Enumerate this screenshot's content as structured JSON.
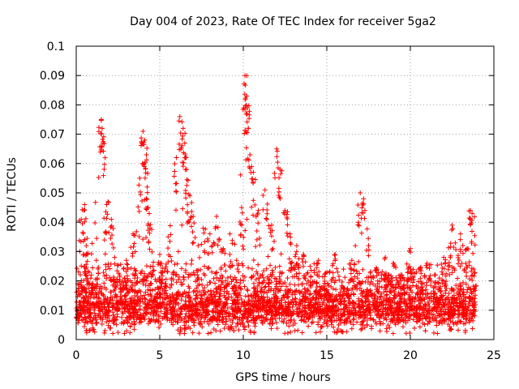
{
  "chart_data": {
    "type": "scatter",
    "title": "Day 004 of 2023, Rate Of TEC Index for receiver 5ga2",
    "xlabel": "GPS time / hours",
    "ylabel": "ROTI / TECUs",
    "xlim": [
      0,
      25
    ],
    "ylim": [
      0,
      0.1
    ],
    "x_ticks": [
      0,
      5,
      10,
      15,
      20,
      25
    ],
    "x_tick_labels": [
      "0",
      "5",
      "10",
      "15",
      "20",
      "25"
    ],
    "y_ticks": [
      0,
      0.01,
      0.02,
      0.03,
      0.04,
      0.05,
      0.06,
      0.07,
      0.08,
      0.09,
      0.1
    ],
    "y_tick_labels": [
      "0",
      "0.01",
      "0.02",
      "0.03",
      "0.04",
      "0.05",
      "0.06",
      "0.07",
      "0.08",
      "0.09",
      "0.1"
    ],
    "grid": true,
    "marker": "+",
    "series_color": "#ff0000",
    "series": [
      {
        "name": "ROTI",
        "x": [
          0.1,
          0.3,
          0.5,
          0.6,
          0.9,
          1.2,
          1.5,
          1.55,
          1.6,
          1.9,
          2.1,
          2.3,
          2.6,
          3.0,
          3.4,
          3.8,
          4.0,
          4.1,
          4.2,
          4.25,
          4.3,
          4.4,
          4.6,
          5.0,
          5.5,
          6.0,
          6.2,
          6.4,
          6.5,
          6.6,
          6.8,
          7.0,
          7.3,
          7.6,
          8.0,
          8.4,
          8.8,
          9.2,
          9.6,
          9.9,
          10.1,
          10.2,
          10.25,
          10.3,
          10.4,
          10.6,
          10.9,
          11.3,
          11.7,
          12.0,
          12.2,
          12.5,
          12.8,
          13.2,
          13.6,
          14.0,
          14.5,
          15.0,
          15.5,
          16.0,
          16.5,
          17.0,
          17.2,
          17.5,
          18.0,
          18.5,
          19.0,
          19.5,
          20.0,
          20.5,
          21.0,
          21.5,
          22.0,
          22.5,
          23.0,
          23.4,
          23.6,
          23.7,
          23.8
        ],
        "y": [
          0.019,
          0.041,
          0.046,
          0.032,
          0.022,
          0.027,
          0.075,
          0.072,
          0.067,
          0.047,
          0.041,
          0.028,
          0.022,
          0.027,
          0.036,
          0.055,
          0.071,
          0.068,
          0.063,
          0.052,
          0.045,
          0.038,
          0.025,
          0.029,
          0.035,
          0.062,
          0.076,
          0.072,
          0.067,
          0.058,
          0.049,
          0.042,
          0.032,
          0.038,
          0.036,
          0.042,
          0.031,
          0.036,
          0.027,
          0.045,
          0.09,
          0.083,
          0.079,
          0.072,
          0.063,
          0.057,
          0.044,
          0.051,
          0.039,
          0.065,
          0.058,
          0.044,
          0.036,
          0.032,
          0.029,
          0.025,
          0.027,
          0.023,
          0.029,
          0.024,
          0.027,
          0.05,
          0.048,
          0.032,
          0.024,
          0.028,
          0.026,
          0.022,
          0.031,
          0.024,
          0.026,
          0.022,
          0.028,
          0.039,
          0.036,
          0.031,
          0.044,
          0.043,
          0.024
        ]
      }
    ],
    "dense_band": {
      "note": "dense scatter of '+' markers filling the low range across the whole day",
      "x_range": [
        0,
        23.9
      ],
      "y_range": [
        0.002,
        0.026
      ]
    }
  }
}
